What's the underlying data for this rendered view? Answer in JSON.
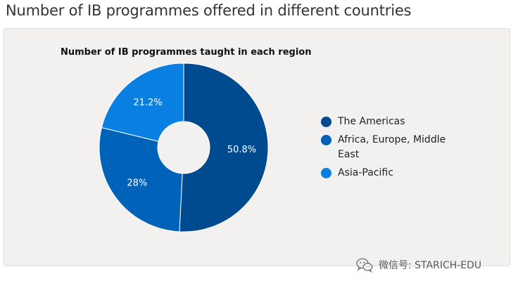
{
  "page_title": "Number of IB programmes offered in different countries",
  "chart_data": {
    "type": "pie",
    "title": "Number of IB programmes taught in each region",
    "categories": [
      "The Americas",
      "Africa, Europe, Middle East",
      "Asia-Pacific"
    ],
    "values": [
      50.8,
      28,
      21.2
    ],
    "value_labels": [
      "50.8%",
      "28%",
      "21.2%"
    ],
    "colors": [
      "#004a8f",
      "#0062b8",
      "#0a7fe2"
    ],
    "donut": true,
    "legend": "right"
  },
  "watermark": {
    "text": "微信号: STARICH-EDU",
    "icon": "wechat-icon"
  }
}
